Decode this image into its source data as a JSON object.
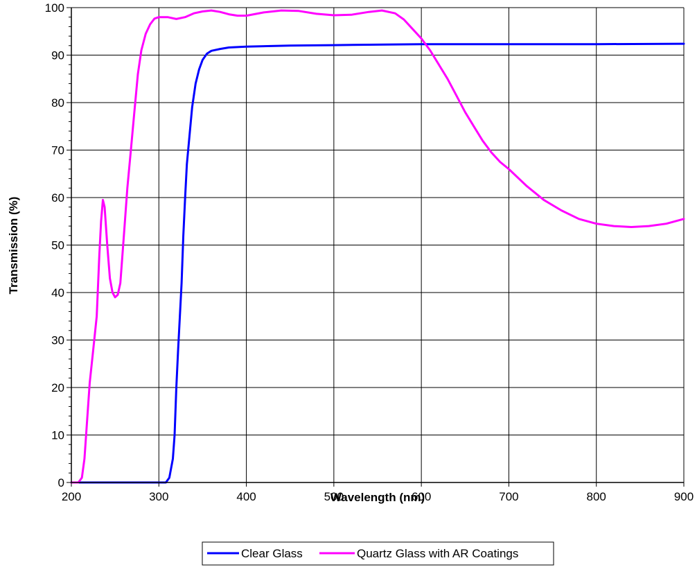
{
  "chart_data": {
    "type": "line",
    "xlabel": "Wavelength (nm)",
    "ylabel": "Transmission (%)",
    "xlim": [
      200,
      900
    ],
    "ylim": [
      0,
      100
    ],
    "x_ticks": [
      200,
      300,
      400,
      500,
      600,
      700,
      800,
      900
    ],
    "y_ticks": [
      0,
      10,
      20,
      30,
      40,
      50,
      60,
      70,
      80,
      90,
      100
    ],
    "grid": true,
    "legend_position": "bottom",
    "series": [
      {
        "name": "Clear Glass",
        "color": "#0000ff",
        "points": [
          [
            200,
            0
          ],
          [
            300,
            0
          ],
          [
            308,
            0
          ],
          [
            312,
            1
          ],
          [
            316,
            5
          ],
          [
            318,
            10
          ],
          [
            320,
            20
          ],
          [
            322,
            28
          ],
          [
            324,
            35
          ],
          [
            326,
            42
          ],
          [
            328,
            52
          ],
          [
            330,
            60
          ],
          [
            332,
            67
          ],
          [
            335,
            73
          ],
          [
            338,
            79
          ],
          [
            342,
            84
          ],
          [
            346,
            87
          ],
          [
            350,
            89
          ],
          [
            355,
            90.3
          ],
          [
            360,
            90.9
          ],
          [
            370,
            91.3
          ],
          [
            380,
            91.6
          ],
          [
            400,
            91.8
          ],
          [
            450,
            92
          ],
          [
            500,
            92.1
          ],
          [
            550,
            92.2
          ],
          [
            600,
            92.3
          ],
          [
            700,
            92.3
          ],
          [
            800,
            92.3
          ],
          [
            900,
            92.4
          ]
        ]
      },
      {
        "name": "Quartz Glass with AR Coatings",
        "color": "#ff00ff",
        "points": [
          [
            200,
            0
          ],
          [
            208,
            0
          ],
          [
            212,
            1
          ],
          [
            215,
            5
          ],
          [
            218,
            13
          ],
          [
            221,
            21
          ],
          [
            225,
            28
          ],
          [
            229,
            35
          ],
          [
            232,
            48
          ],
          [
            234,
            55
          ],
          [
            236,
            59.5
          ],
          [
            238,
            58
          ],
          [
            241,
            50
          ],
          [
            244,
            43
          ],
          [
            247,
            40
          ],
          [
            250,
            39
          ],
          [
            253,
            39.5
          ],
          [
            256,
            42
          ],
          [
            260,
            52
          ],
          [
            264,
            62
          ],
          [
            268,
            70
          ],
          [
            272,
            78
          ],
          [
            276,
            86
          ],
          [
            280,
            91
          ],
          [
            285,
            94.5
          ],
          [
            290,
            96.5
          ],
          [
            295,
            97.7
          ],
          [
            300,
            98
          ],
          [
            310,
            98
          ],
          [
            320,
            97.6
          ],
          [
            330,
            98
          ],
          [
            340,
            98.8
          ],
          [
            350,
            99.2
          ],
          [
            360,
            99.4
          ],
          [
            370,
            99.1
          ],
          [
            380,
            98.6
          ],
          [
            390,
            98.3
          ],
          [
            400,
            98.3
          ],
          [
            420,
            99
          ],
          [
            440,
            99.4
          ],
          [
            460,
            99.3
          ],
          [
            480,
            98.7
          ],
          [
            500,
            98.4
          ],
          [
            520,
            98.5
          ],
          [
            540,
            99.1
          ],
          [
            555,
            99.4
          ],
          [
            570,
            98.8
          ],
          [
            580,
            97.5
          ],
          [
            590,
            95.5
          ],
          [
            600,
            93.5
          ],
          [
            610,
            91
          ],
          [
            620,
            88
          ],
          [
            630,
            85
          ],
          [
            640,
            81.5
          ],
          [
            650,
            78
          ],
          [
            660,
            75
          ],
          [
            670,
            72
          ],
          [
            680,
            69.5
          ],
          [
            690,
            67.5
          ],
          [
            700,
            66
          ],
          [
            720,
            62.5
          ],
          [
            740,
            59.5
          ],
          [
            760,
            57.3
          ],
          [
            780,
            55.5
          ],
          [
            800,
            54.5
          ],
          [
            820,
            54
          ],
          [
            840,
            53.8
          ],
          [
            860,
            54
          ],
          [
            880,
            54.5
          ],
          [
            900,
            55.5
          ]
        ]
      }
    ]
  }
}
